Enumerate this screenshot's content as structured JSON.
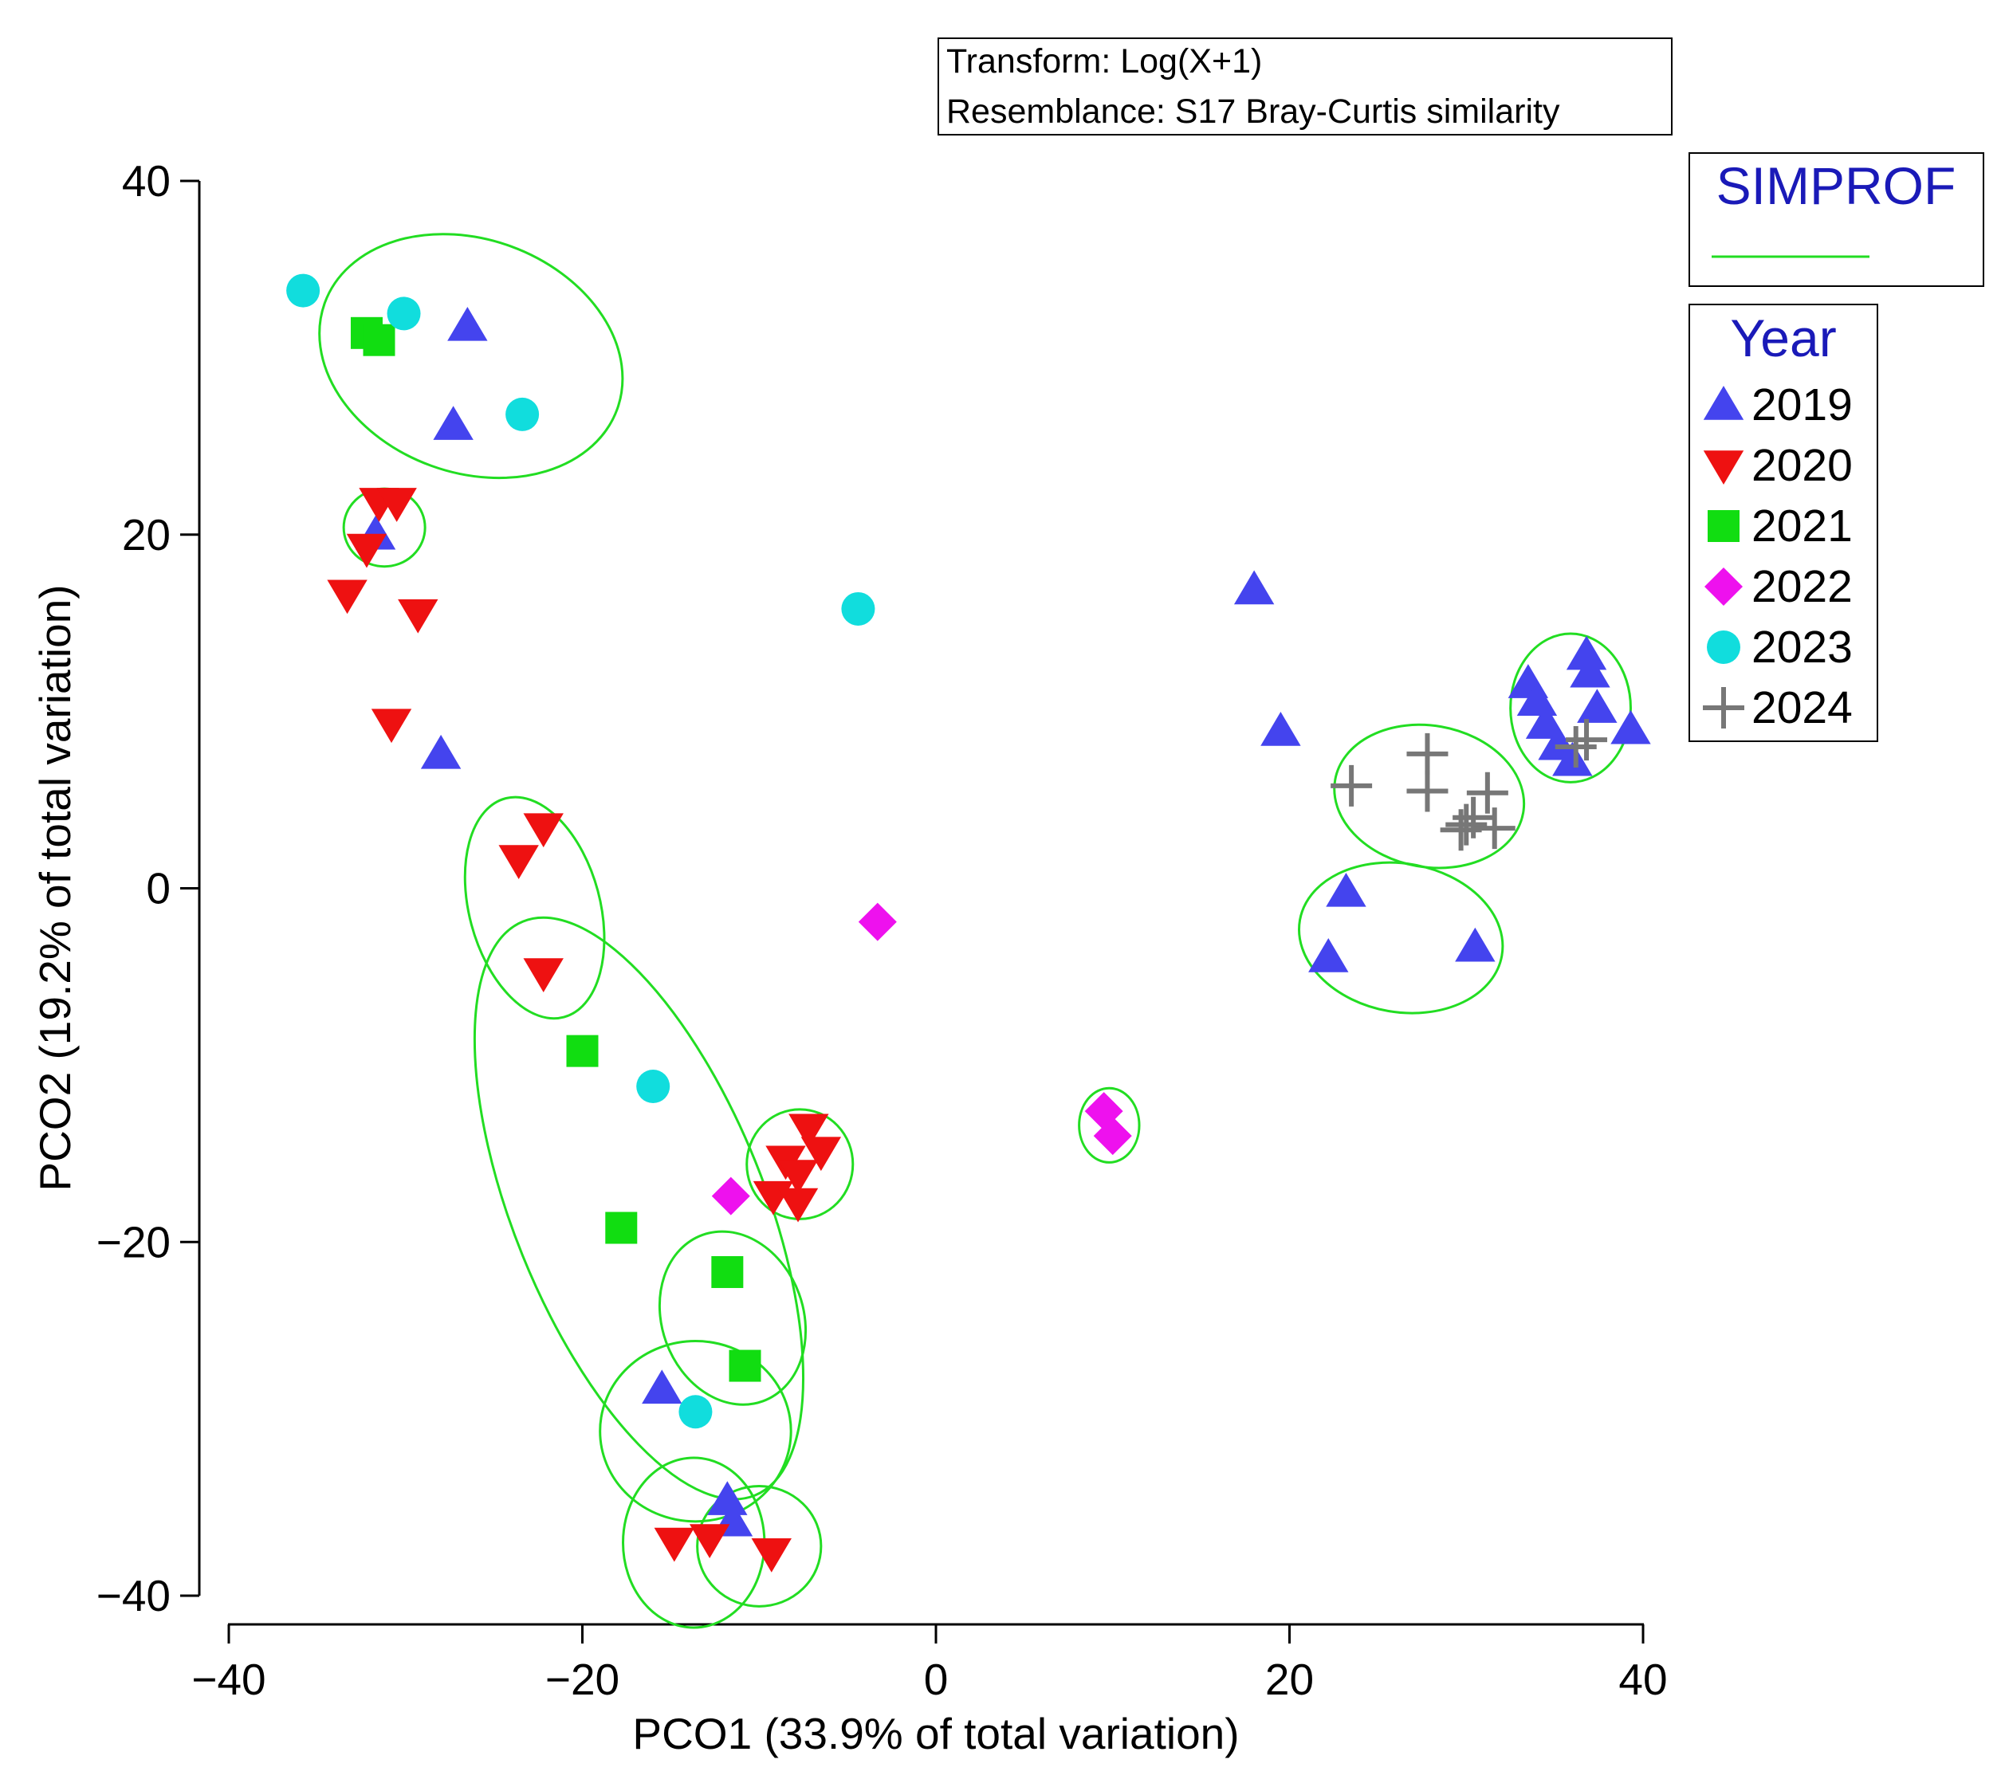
{
  "chart_data": {
    "type": "scatter",
    "xlabel": "PCO1 (33.9% of total variation)",
    "ylabel": "PCO2 (19.2% of total variation)",
    "xlim": [
      -40,
      40
    ],
    "ylim": [
      -40,
      40
    ],
    "x_ticks": [
      -40,
      -20,
      0,
      20,
      40
    ],
    "y_ticks": [
      -40,
      -20,
      0,
      20,
      40
    ],
    "x_tick_labels": [
      "−40",
      "−20",
      "0",
      "20",
      "40"
    ],
    "y_tick_labels": [
      "−40",
      "−20",
      "0",
      "20",
      "40"
    ],
    "grid": false,
    "info_box": {
      "transform": "Transform: Log(X+1)",
      "resemblance": "Resemblance: S17 Bray-Curtis similarity"
    },
    "simprof_legend": {
      "title": "SIMPROF",
      "color": "#22dd22"
    },
    "legend": {
      "title": "Year",
      "placement": "right"
    },
    "series": [
      {
        "name": "2019",
        "marker": "triangle-up",
        "color": "#4444ee",
        "points": [
          [
            -26.5,
            31.8
          ],
          [
            -27.3,
            26.2
          ],
          [
            -31.7,
            20.0
          ],
          [
            -28,
            7.6
          ],
          [
            18,
            16.9
          ],
          [
            19.5,
            8.9
          ],
          [
            23.2,
            -0.2
          ],
          [
            22.2,
            -3.9
          ],
          [
            30.5,
            -3.3
          ],
          [
            33.5,
            11.6
          ],
          [
            34,
            10.6
          ],
          [
            34.5,
            9.3
          ],
          [
            35.2,
            8.1
          ],
          [
            36,
            7.2
          ],
          [
            36.8,
            13.2
          ],
          [
            37,
            12.2
          ],
          [
            37.4,
            10.2
          ],
          [
            39.3,
            9.0
          ],
          [
            -15.5,
            -28.3
          ],
          [
            -11.8,
            -34.6
          ],
          [
            -11.5,
            -35.8
          ]
        ]
      },
      {
        "name": "2020",
        "marker": "triangle-down",
        "color": "#ee1111",
        "points": [
          [
            -31.5,
            21.8
          ],
          [
            -30.5,
            21.8
          ],
          [
            -32.2,
            19.2
          ],
          [
            -33.3,
            16.6
          ],
          [
            -29.3,
            15.5
          ],
          [
            -30.8,
            9.3
          ],
          [
            -22.2,
            3.4
          ],
          [
            -23.6,
            1.6
          ],
          [
            -22.2,
            -4.8
          ],
          [
            -7.2,
            -13.6
          ],
          [
            -6.5,
            -14.9
          ],
          [
            -8.5,
            -15.4
          ],
          [
            -7.8,
            -16.2
          ],
          [
            -9.2,
            -17.4
          ],
          [
            -7.8,
            -17.8
          ],
          [
            -14.8,
            -37.0
          ],
          [
            -12.8,
            -36.8
          ],
          [
            -9.3,
            -37.6
          ]
        ]
      },
      {
        "name": "2021",
        "marker": "square",
        "color": "#11dd11",
        "points": [
          [
            -32.2,
            31.4
          ],
          [
            -31.5,
            31.0
          ],
          [
            -20,
            -9.2
          ],
          [
            -17.8,
            -19.2
          ],
          [
            -11.8,
            -21.7
          ],
          [
            -10.8,
            -27.0
          ]
        ]
      },
      {
        "name": "2022",
        "marker": "diamond",
        "color": "#ee11ee",
        "points": [
          [
            -3.3,
            -1.9
          ],
          [
            9.5,
            -12.6
          ],
          [
            10,
            -14.0
          ],
          [
            -11.6,
            -17.4
          ]
        ]
      },
      {
        "name": "2023",
        "marker": "circle",
        "color": "#11dddd",
        "points": [
          [
            -35.8,
            33.8
          ],
          [
            -30.1,
            32.5
          ],
          [
            -23.4,
            26.8
          ],
          [
            -4.4,
            15.8
          ],
          [
            -16,
            -11.2
          ],
          [
            -13.6,
            -29.6
          ]
        ]
      },
      {
        "name": "2024",
        "marker": "plus",
        "color": "#777777",
        "points": [
          [
            23.5,
            5.8
          ],
          [
            27.8,
            7.6
          ],
          [
            27.8,
            5.5
          ],
          [
            29.7,
            3.3
          ],
          [
            30,
            3.6
          ],
          [
            30.4,
            4.0
          ],
          [
            31.2,
            5.4
          ],
          [
            31.6,
            3.4
          ],
          [
            36.2,
            8.0
          ],
          [
            36.8,
            8.4
          ]
        ]
      }
    ],
    "simprof_groups": [
      {
        "cx": -26.3,
        "cy": 30.1,
        "rx": 8.8,
        "ry": 6.6,
        "rotate": 20
      },
      {
        "cx": -31.2,
        "cy": 20.4,
        "rx": 2.3,
        "ry": 2.2,
        "rotate": 0
      },
      {
        "cx": -22.7,
        "cy": -1.1,
        "rx": 3.7,
        "ry": 6.4,
        "rotate": -15
      },
      {
        "cx": -16.8,
        "cy": -18.1,
        "rx": 7.1,
        "ry": 17.5,
        "rotate": -22
      },
      {
        "cx": -7.7,
        "cy": -15.6,
        "rx": 3.0,
        "ry": 3.1,
        "rotate": 0
      },
      {
        "cx": -11.5,
        "cy": -24.3,
        "rx": 4.0,
        "ry": 5.0,
        "rotate": -20
      },
      {
        "cx": -13.6,
        "cy": -30.7,
        "rx": 5.4,
        "ry": 5.1,
        "rotate": 0
      },
      {
        "cx": -13.7,
        "cy": -37.0,
        "rx": 4.0,
        "ry": 4.8,
        "rotate": 0
      },
      {
        "cx": -10.0,
        "cy": -37.2,
        "rx": 3.5,
        "ry": 3.4,
        "rotate": 0
      },
      {
        "cx": 9.8,
        "cy": -13.4,
        "rx": 1.7,
        "ry": 2.1,
        "rotate": 0
      },
      {
        "cx": 26.3,
        "cy": -2.8,
        "rx": 5.8,
        "ry": 4.2,
        "rotate": 10
      },
      {
        "cx": 27.9,
        "cy": 5.2,
        "rx": 5.4,
        "ry": 4.0,
        "rotate": 10
      },
      {
        "cx": 35.9,
        "cy": 10.2,
        "rx": 3.4,
        "ry": 4.2,
        "rotate": 0
      }
    ]
  }
}
